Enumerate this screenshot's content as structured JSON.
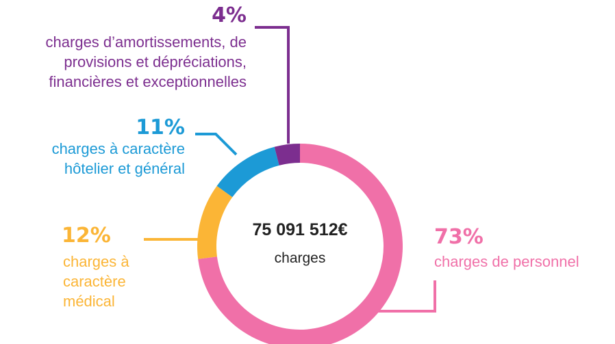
{
  "chart_data": {
    "type": "pie",
    "donut": true,
    "center_value": "75 091 512€",
    "center_label": "charges",
    "categories": [
      "charges de personnel",
      "charges à caractère médical",
      "charges à caractère hôtelier et général",
      "charges d’amortissements, de provisions et dépréciations, financières et exceptionnelles"
    ],
    "values": [
      73,
      12,
      11,
      4
    ],
    "value_labels": [
      "73%",
      "12%",
      "11%",
      "4%"
    ],
    "colors": [
      "#f070a8",
      "#fbb536",
      "#1c9ad6",
      "#7c2e8f"
    ]
  }
}
